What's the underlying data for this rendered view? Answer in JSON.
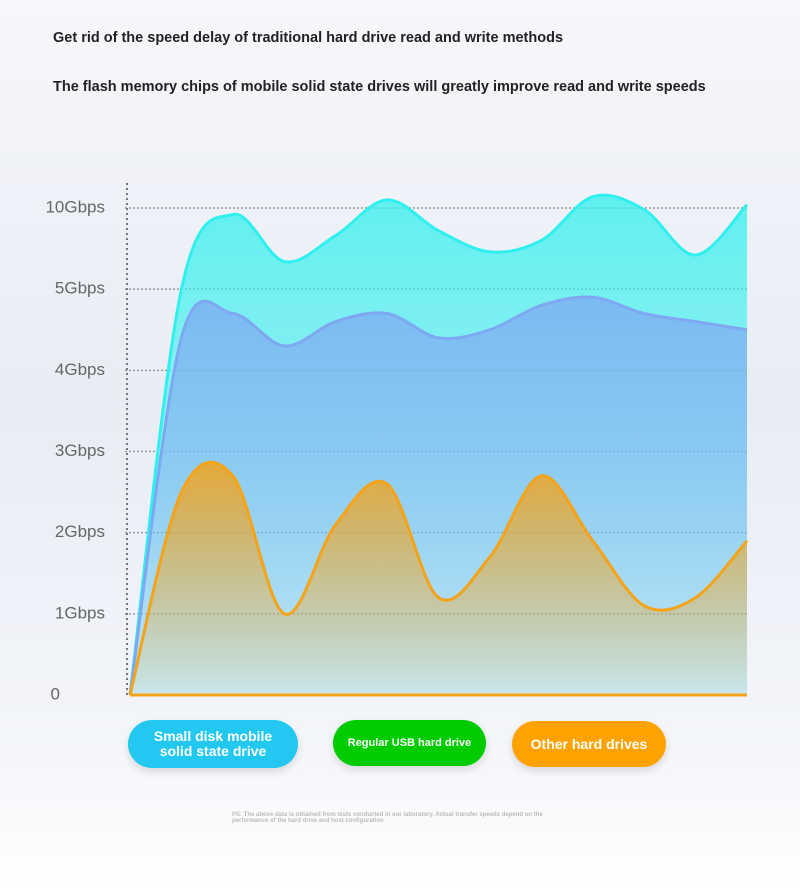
{
  "headline": "Get rid of the speed delay of traditional hard drive read and write methods",
  "subheadline": "The flash memory chips of mobile solid state drives will greatly improve read and write speeds",
  "footnote": "PS: The above data is obtained from tests conducted in our laboratory. Actual transfer speeds depend on the performance of the hard drive and host configuration",
  "chart_data": {
    "type": "area",
    "categories": [
      null,
      null,
      null,
      null,
      null,
      null,
      null,
      null,
      null,
      null,
      null,
      null,
      null
    ],
    "ylim": [
      0,
      10
    ],
    "yticks": [
      0,
      {
        "value": 1,
        "label": "1Gbps"
      },
      {
        "value": 2,
        "label": "2Gbps"
      },
      {
        "value": 3,
        "label": "3Gbps"
      },
      {
        "value": 4,
        "label": "4Gbps"
      },
      {
        "value": 5,
        "label": "5Gbps"
      },
      {
        "value": 10,
        "label": "10Gbps"
      }
    ],
    "grid": true,
    "series": [
      {
        "name": "Small disk mobile solid state drive",
        "color": "#2ff0ee",
        "legend_color": "#22c8f0",
        "values": [
          0,
          5,
          9.6,
          6.7,
          8.3,
          10.5,
          8.6,
          7.3,
          8.0,
          10.7,
          9.9,
          7.1,
          10.2
        ]
      },
      {
        "name": "Regular USB hard drive",
        "color": "#7ea8f2",
        "legend_color": "#00cc00",
        "values": [
          0,
          4.4,
          4.7,
          4.3,
          4.6,
          4.7,
          4.4,
          4.5,
          4.8,
          4.9,
          4.7,
          4.6,
          4.5
        ]
      },
      {
        "name": "Other hard drives",
        "color": "#f5a318",
        "legend_color": "#ffa200",
        "values": [
          0,
          2.5,
          2.7,
          1.0,
          2.1,
          2.6,
          1.2,
          1.7,
          2.7,
          1.9,
          1.1,
          1.2,
          1.9
        ]
      }
    ]
  }
}
